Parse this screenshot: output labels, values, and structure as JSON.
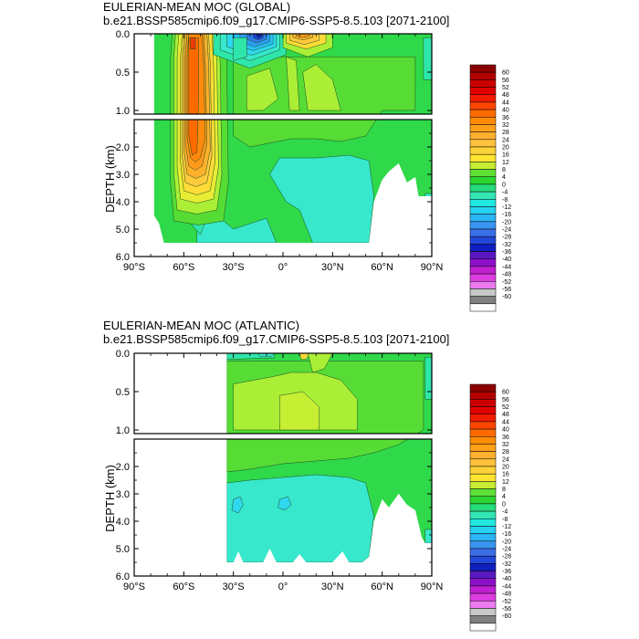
{
  "chart_data": [
    {
      "type": "heatmap",
      "title": "EULERIAN-MEAN MOC (GLOBAL)",
      "subtitle": "b.e21.BSSP585cmip6.f09_g17.CMIP6-SSP5-8.5.103 [2071-2100]",
      "ylabel": "DEPTH (km)",
      "xlabel": "",
      "xlim": [
        -90,
        90
      ],
      "ylim": [
        0,
        6
      ],
      "x_ticks": [
        "90°S",
        "60°S",
        "30°S",
        "0°",
        "30°N",
        "60°N",
        "90°N"
      ],
      "y_ticks_upper": [
        "0.0",
        "0.5",
        "1.0"
      ],
      "y_ticks_lower": [
        "2.0",
        "3.0",
        "4.0",
        "5.0",
        "6.0"
      ],
      "features": [
        {
          "name": "southern-ocean-deacon-cell",
          "lat_center": -54,
          "depth_top": 0.0,
          "depth_bottom": 4.8,
          "peak_value": 40
        },
        {
          "name": "surface-negative-cell",
          "lat_center": -10,
          "depth_top": 0.0,
          "depth_bottom": 0.2,
          "peak_value": -36
        },
        {
          "name": "northern-surface-positive-cell",
          "lat_center": 12,
          "depth_top": 0.0,
          "depth_bottom": 0.15,
          "peak_value": 24
        },
        {
          "name": "abyssal-negative-cell",
          "lat_center": 20,
          "depth_top": 2.6,
          "depth_bottom": 5.5,
          "peak_value": -8
        }
      ]
    },
    {
      "type": "heatmap",
      "title": "EULERIAN-MEAN MOC (ATLANTIC)",
      "subtitle": "b.e21.BSSP585cmip6.f09_g17.CMIP6-SSP5-8.5.103 [2071-2100]",
      "ylabel": "DEPTH (km)",
      "xlabel": "",
      "xlim": [
        -90,
        90
      ],
      "ylim": [
        0,
        6
      ],
      "x_ticks": [
        "90°S",
        "60°S",
        "30°S",
        "0°",
        "30°N",
        "60°N",
        "90°N"
      ],
      "y_ticks_upper": [
        "0.0",
        "0.5",
        "1.0"
      ],
      "y_ticks_lower": [
        "2.0",
        "3.0",
        "4.0",
        "5.0",
        "6.0"
      ],
      "features": [
        {
          "name": "amoc-upper-cell",
          "lat_center": 0,
          "depth_top": 0.0,
          "depth_bottom": 2.2,
          "peak_value": 12
        },
        {
          "name": "aabw-negative-cell",
          "lat_center": 15,
          "depth_top": 2.4,
          "depth_bottom": 5.5,
          "peak_value": -8
        }
      ]
    }
  ],
  "colorbar": {
    "labels": [
      "60",
      "56",
      "52",
      "48",
      "44",
      "40",
      "36",
      "32",
      "28",
      "24",
      "20",
      "16",
      "12",
      "8",
      "4",
      "0",
      "-4",
      "-8",
      "-12",
      "-16",
      "-20",
      "-24",
      "-28",
      "-32",
      "-36",
      "-40",
      "-44",
      "-48",
      "-52",
      "-56",
      "-60"
    ],
    "colors": [
      "#8b0000",
      "#b20000",
      "#cc0000",
      "#e00000",
      "#f21c00",
      "#ff4500",
      "#ff6a00",
      "#ff8c00",
      "#ff9f1a",
      "#ffb030",
      "#ffc23a",
      "#ffd23a",
      "#ffe430",
      "#c8ec32",
      "#5ee037",
      "#2cd52f",
      "#27dc7a",
      "#33e6b3",
      "#20e8e0",
      "#27d2f0",
      "#2db4f5",
      "#3a95f0",
      "#3a6fe8",
      "#2448d8",
      "#0f1fc0",
      "#5a19c0",
      "#8d10c8",
      "#c01fd0",
      "#dc3ee0",
      "#ec7bf0",
      "#c8c8c8",
      "#808080",
      "#ffffff"
    ]
  }
}
